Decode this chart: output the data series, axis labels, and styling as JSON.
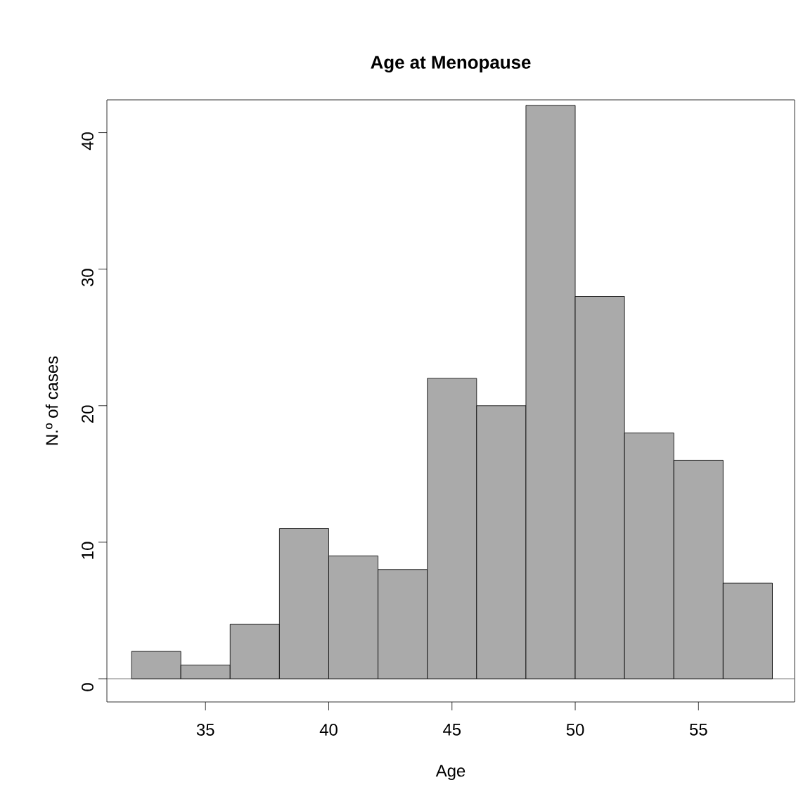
{
  "chart_data": {
    "type": "histogram",
    "title": "Age at Menopause",
    "xlabel": "Age",
    "ylabel": "N.º of cases",
    "bins": [
      32,
      34,
      36,
      38,
      40,
      42,
      44,
      46,
      48,
      50,
      52,
      54,
      56,
      58
    ],
    "values": [
      2,
      1,
      4,
      11,
      9,
      8,
      22,
      20,
      42,
      28,
      18,
      16,
      7
    ],
    "color": "#aaaaaa",
    "xlim": [
      31,
      58.9
    ],
    "ylim": [
      -1.7,
      42.4
    ],
    "xticks": [
      35,
      40,
      45,
      50,
      55
    ],
    "yticks": [
      0,
      10,
      20,
      30,
      40
    ],
    "ref_lines": [
      {
        "axis": "y",
        "value": 0,
        "color": "#555555"
      }
    ]
  }
}
